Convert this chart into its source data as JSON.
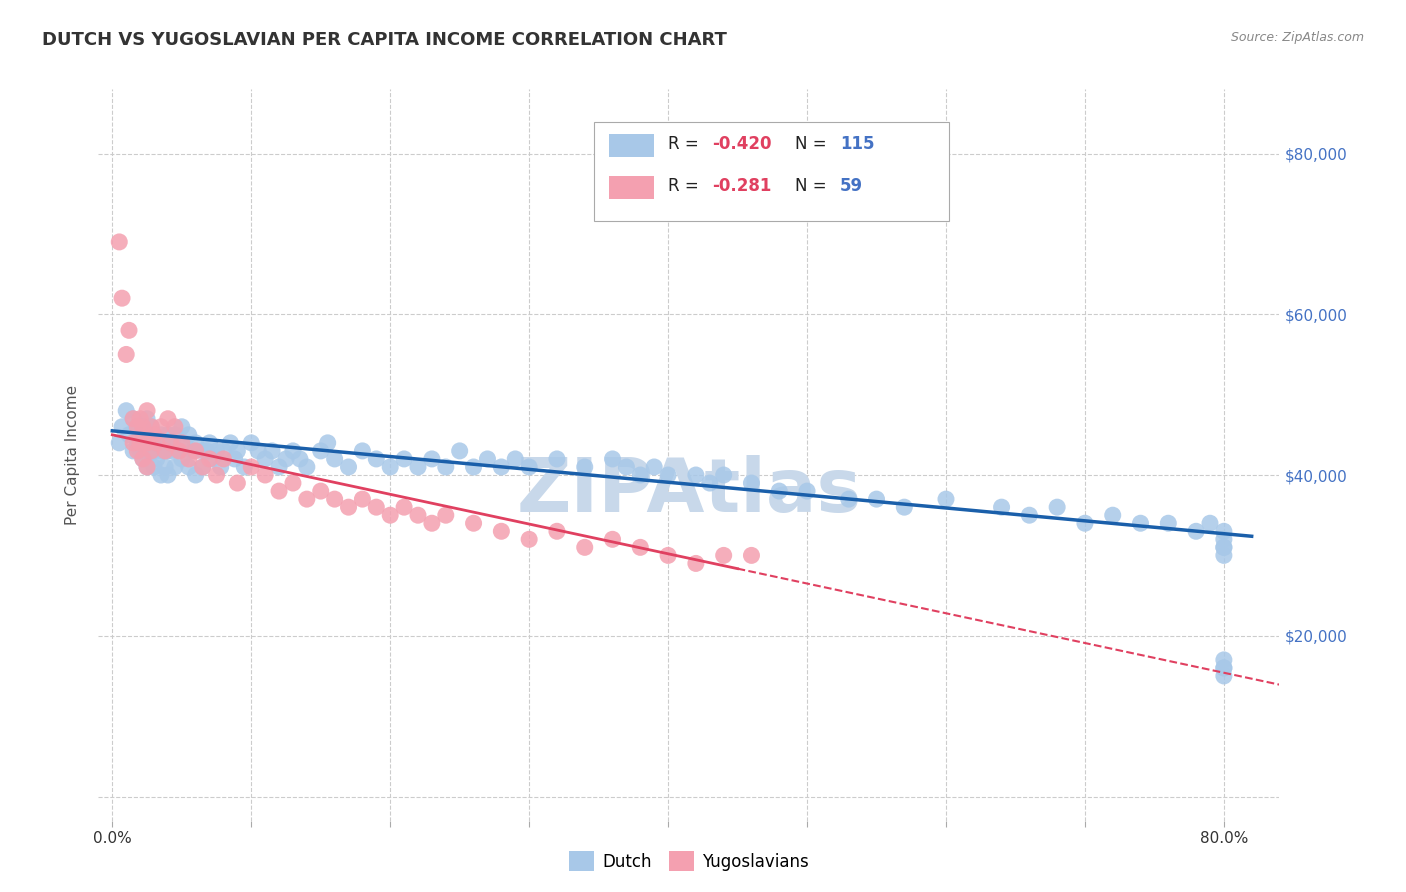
{
  "title": "DUTCH VS YUGOSLAVIAN PER CAPITA INCOME CORRELATION CHART",
  "source_text": "Source: ZipAtlas.com",
  "ylabel": "Per Capita Income",
  "yticks": [
    0,
    20000,
    40000,
    60000,
    80000
  ],
  "ytick_labels": [
    "",
    "$20,000",
    "$40,000",
    "$60,000",
    "$80,000"
  ],
  "dutch_R": -0.42,
  "dutch_N": 115,
  "yugo_R": -0.281,
  "yugo_N": 59,
  "dutch_color": "#a8c8e8",
  "dutch_line_color": "#1a5faa",
  "yugo_color": "#f4a0b0",
  "yugo_line_color": "#e04060",
  "title_color": "#333333",
  "title_fontsize": 14,
  "axis_label_color": "#4472c4",
  "watermark_color": "#c8d8ea",
  "background_color": "#ffffff",
  "dutch_x": [
    0.005,
    0.007,
    0.01,
    0.012,
    0.015,
    0.015,
    0.018,
    0.018,
    0.02,
    0.02,
    0.022,
    0.022,
    0.025,
    0.025,
    0.025,
    0.028,
    0.028,
    0.03,
    0.03,
    0.03,
    0.032,
    0.032,
    0.035,
    0.035,
    0.035,
    0.038,
    0.038,
    0.04,
    0.04,
    0.04,
    0.042,
    0.045,
    0.045,
    0.048,
    0.05,
    0.05,
    0.052,
    0.055,
    0.055,
    0.058,
    0.06,
    0.06,
    0.065,
    0.065,
    0.068,
    0.07,
    0.072,
    0.075,
    0.078,
    0.08,
    0.085,
    0.088,
    0.09,
    0.095,
    0.1,
    0.105,
    0.11,
    0.115,
    0.12,
    0.125,
    0.13,
    0.135,
    0.14,
    0.15,
    0.155,
    0.16,
    0.17,
    0.18,
    0.19,
    0.2,
    0.21,
    0.22,
    0.23,
    0.24,
    0.25,
    0.26,
    0.27,
    0.28,
    0.29,
    0.3,
    0.32,
    0.34,
    0.36,
    0.37,
    0.38,
    0.39,
    0.4,
    0.42,
    0.43,
    0.44,
    0.46,
    0.48,
    0.5,
    0.53,
    0.55,
    0.57,
    0.6,
    0.64,
    0.66,
    0.68,
    0.7,
    0.72,
    0.74,
    0.76,
    0.78,
    0.79,
    0.8,
    0.8,
    0.8,
    0.8,
    0.8,
    0.8,
    0.8,
    0.8,
    0.8
  ],
  "dutch_y": [
    44000,
    46000,
    48000,
    45000,
    47000,
    43000,
    46000,
    44000,
    45000,
    43000,
    46000,
    42000,
    47000,
    44000,
    41000,
    46000,
    43000,
    45000,
    43000,
    41000,
    44000,
    42000,
    45000,
    43000,
    40000,
    44000,
    41000,
    45000,
    43000,
    40000,
    43000,
    45000,
    41000,
    43000,
    46000,
    42000,
    44000,
    45000,
    41000,
    43000,
    44000,
    40000,
    43000,
    41000,
    43000,
    44000,
    42000,
    43000,
    41000,
    43000,
    44000,
    42000,
    43000,
    41000,
    44000,
    43000,
    42000,
    43000,
    41000,
    42000,
    43000,
    42000,
    41000,
    43000,
    44000,
    42000,
    41000,
    43000,
    42000,
    41000,
    42000,
    41000,
    42000,
    41000,
    43000,
    41000,
    42000,
    41000,
    42000,
    41000,
    42000,
    41000,
    42000,
    41000,
    40000,
    41000,
    40000,
    40000,
    39000,
    40000,
    39000,
    38000,
    38000,
    37000,
    37000,
    36000,
    37000,
    36000,
    35000,
    36000,
    34000,
    35000,
    34000,
    34000,
    33000,
    34000,
    33000,
    32000,
    31000,
    30000,
    31000,
    16000,
    17000,
    16000,
    15000
  ],
  "yugo_x": [
    0.005,
    0.007,
    0.01,
    0.012,
    0.015,
    0.015,
    0.018,
    0.018,
    0.02,
    0.02,
    0.022,
    0.022,
    0.025,
    0.025,
    0.025,
    0.028,
    0.028,
    0.03,
    0.032,
    0.035,
    0.038,
    0.04,
    0.042,
    0.045,
    0.048,
    0.05,
    0.055,
    0.06,
    0.065,
    0.07,
    0.075,
    0.08,
    0.09,
    0.1,
    0.11,
    0.12,
    0.13,
    0.14,
    0.15,
    0.16,
    0.17,
    0.18,
    0.19,
    0.2,
    0.21,
    0.22,
    0.23,
    0.24,
    0.26,
    0.28,
    0.3,
    0.32,
    0.34,
    0.36,
    0.38,
    0.4,
    0.42,
    0.44,
    0.46
  ],
  "yugo_y": [
    69000,
    62000,
    55000,
    58000,
    47000,
    44000,
    46000,
    43000,
    47000,
    44000,
    46000,
    42000,
    48000,
    44000,
    41000,
    46000,
    43000,
    45000,
    44000,
    46000,
    43000,
    47000,
    44000,
    46000,
    43000,
    44000,
    42000,
    43000,
    41000,
    42000,
    40000,
    42000,
    39000,
    41000,
    40000,
    38000,
    39000,
    37000,
    38000,
    37000,
    36000,
    37000,
    36000,
    35000,
    36000,
    35000,
    34000,
    35000,
    34000,
    33000,
    32000,
    33000,
    31000,
    32000,
    31000,
    30000,
    29000,
    30000,
    30000
  ]
}
